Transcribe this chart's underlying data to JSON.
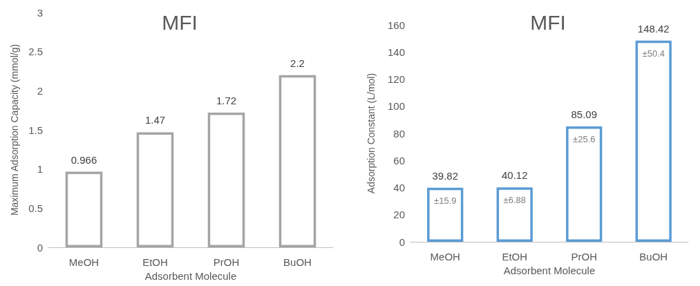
{
  "chart_data": [
    {
      "type": "bar",
      "title": "MFI",
      "xlabel": "Adsorbent Molecule",
      "ylabel": "Maximum Adsorption Capacity (mmol/g)",
      "categories": [
        "MeOH",
        "EtOH",
        "PrOH",
        "BuOH"
      ],
      "values": [
        0.966,
        1.47,
        1.72,
        2.2
      ],
      "color": "#a5a5a5",
      "ylim": [
        0,
        3
      ],
      "yticks": [
        0,
        0.5,
        1,
        1.5,
        2,
        2.5,
        3
      ],
      "data_labels": true,
      "grid": false
    },
    {
      "type": "bar",
      "title": "MFI",
      "xlabel": "Adsorbent Molecule",
      "ylabel": "Adsorption Constant (L/mol)",
      "categories": [
        "MeOH",
        "EtOH",
        "PrOH",
        "BuOH"
      ],
      "values": [
        39.82,
        40.12,
        85.09,
        148.42
      ],
      "color": "#5b9bd5",
      "ylim": [
        0,
        160
      ],
      "yticks": [
        0,
        20,
        40,
        60,
        80,
        100,
        120,
        140,
        160
      ],
      "data_labels": true,
      "grid": false,
      "annotations": [
        "±15.9",
        "±6.88",
        "±25.6",
        "±50.4"
      ]
    }
  ]
}
